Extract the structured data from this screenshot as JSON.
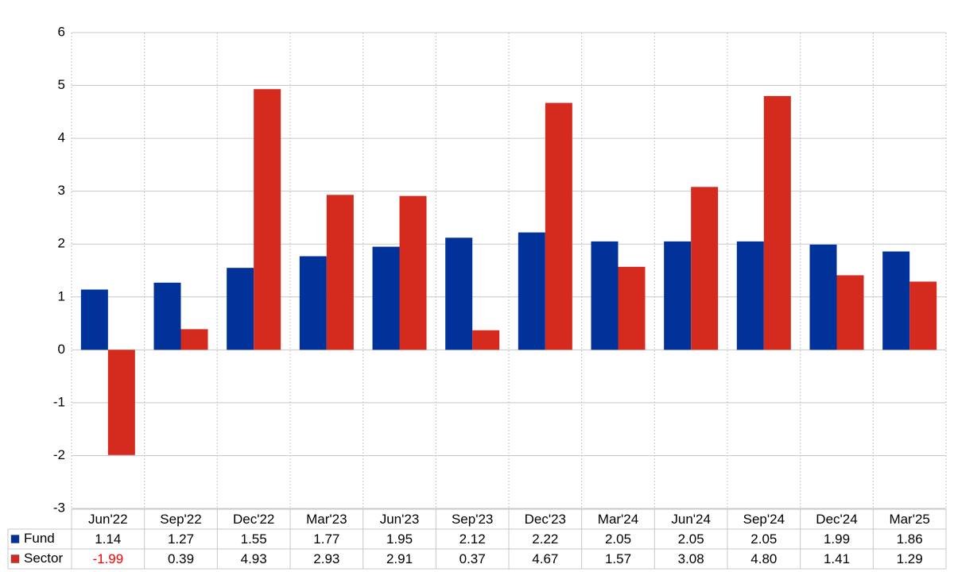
{
  "chart_data": {
    "type": "bar",
    "categories": [
      "Jun'22",
      "Sep'22",
      "Dec'22",
      "Mar'23",
      "Jun'23",
      "Sep'23",
      "Dec'23",
      "Mar'24",
      "Jun'24",
      "Sep'24",
      "Dec'24",
      "Mar'25"
    ],
    "series": [
      {
        "name": "Fund",
        "color": "#003299",
        "values": [
          1.14,
          1.27,
          1.55,
          1.77,
          1.95,
          2.12,
          2.22,
          2.05,
          2.05,
          2.05,
          1.99,
          1.86
        ]
      },
      {
        "name": "Sector",
        "color": "#d42b1e",
        "values": [
          -1.99,
          0.39,
          4.93,
          2.93,
          2.91,
          0.37,
          4.67,
          1.57,
          3.08,
          4.8,
          1.41,
          1.29
        ],
        "value_labels": [
          "-1.99",
          "0.39",
          "4.93",
          "2.93",
          "2.91",
          "0.37",
          "4.67",
          "1.57",
          "3.08",
          "4.80",
          "1.41",
          "1.29"
        ]
      }
    ],
    "ylim": [
      -3,
      6
    ],
    "yticks": [
      -3,
      -2,
      -1,
      0,
      1,
      2,
      3,
      4,
      5,
      6
    ],
    "grid": true,
    "legend": "table"
  }
}
